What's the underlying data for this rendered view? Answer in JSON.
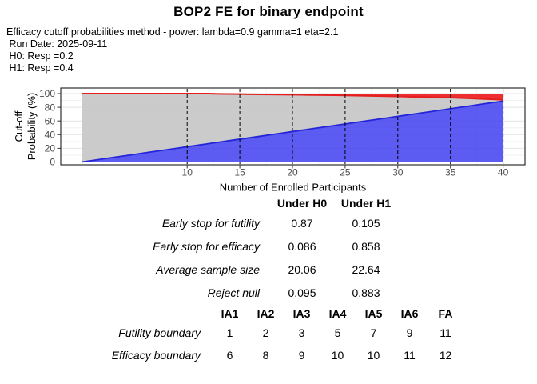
{
  "header": {
    "title": "BOP2 FE for binary endpoint",
    "subtitle": "Efficacy cutoff probabilities method - power: lambda=0.9 gamma=1 eta=2.1",
    "run_date": " Run Date: 2025-09-11",
    "h0": " H0: Resp =0.2",
    "h1": " H1: Resp =0.4"
  },
  "chart_data": {
    "type": "area",
    "title": "",
    "xlabel": "Number of Enrolled Participants",
    "ylabel_lines": [
      "Cut-off",
      "Probability (%)"
    ],
    "xlim": [
      -1,
      42
    ],
    "ylim": [
      -5,
      105
    ],
    "x_ticks": [
      10,
      15,
      20,
      25,
      30,
      35,
      40
    ],
    "y_ticks": [
      0,
      20,
      40,
      60,
      80,
      100
    ],
    "interim_analysis_x": [
      10,
      15,
      20,
      25,
      30,
      35,
      40
    ],
    "grid": true,
    "x": [
      0,
      1,
      2,
      3,
      4,
      5,
      6,
      7,
      8,
      9,
      10,
      11,
      12,
      13,
      14,
      15,
      16,
      17,
      18,
      19,
      20,
      21,
      22,
      23,
      24,
      25,
      26,
      27,
      28,
      29,
      30,
      31,
      32,
      33,
      34,
      35,
      36,
      37,
      38,
      39,
      40
    ],
    "series": [
      {
        "name": "futility-cutoff-probability",
        "region": "stop-for-futility",
        "fill": "#4040f0",
        "line": "#2525d8",
        "values": [
          0,
          2.2,
          4.5,
          6.7,
          8.9,
          11.1,
          13.4,
          15.6,
          17.8,
          20.0,
          22.3,
          24.5,
          26.7,
          28.9,
          31.2,
          33.4,
          35.6,
          37.8,
          40.1,
          42.3,
          44.5,
          46.7,
          49.0,
          51.2,
          53.4,
          55.6,
          57.9,
          60.1,
          62.3,
          64.5,
          66.8,
          69.0,
          71.2,
          73.4,
          75.7,
          77.9,
          80.1,
          82.3,
          84.6,
          86.8,
          89.0
        ]
      },
      {
        "name": "efficacy-cutoff-probability",
        "region": "stop-for-efficacy",
        "fill": "#ee2424",
        "line": "#e51f1f",
        "values": [
          100,
          100,
          100,
          100,
          100,
          100,
          100,
          100,
          100,
          100,
          100,
          100,
          100,
          99.6,
          99.4,
          99.2,
          99.0,
          98.9,
          98.7,
          98.6,
          98.4,
          98.2,
          98.0,
          97.8,
          97.6,
          97.4,
          97.1,
          96.8,
          96.5,
          96.2,
          95.9,
          95.5,
          95.2,
          94.9,
          94.5,
          94.2,
          93.6,
          93.0,
          92.3,
          91.6,
          91.0
        ]
      }
    ],
    "continue_region_fill": "#c8c8c8",
    "colors": {
      "panel_border": "#2f2f2f",
      "grid_major": "#e4e4e4",
      "grid_minor": "#f2f2f2",
      "tick_text": "#4d4d4d",
      "axis_title": "#000000",
      "interim_line": "#000000"
    }
  },
  "oc_table": {
    "col_headers": [
      "Under H0",
      "Under H1"
    ],
    "rows": [
      {
        "label": "Early stop for futility",
        "h0": "0.87",
        "h1": "0.105"
      },
      {
        "label": "Early stop for efficacy",
        "h0": "0.086",
        "h1": "0.858"
      },
      {
        "label": "Average sample size",
        "h0": "20.06",
        "h1": "22.64"
      },
      {
        "label": "Reject null",
        "h0": "0.095",
        "h1": "0.883"
      }
    ]
  },
  "boundary_table": {
    "col_headers": [
      "IA1",
      "IA2",
      "IA3",
      "IA4",
      "IA5",
      "IA6",
      "FA"
    ],
    "rows": [
      {
        "label": "Futility boundary",
        "values": [
          "1",
          "2",
          "3",
          "5",
          "7",
          "9",
          "11"
        ]
      },
      {
        "label": "Efficacy boundary",
        "values": [
          "6",
          "8",
          "9",
          "10",
          "10",
          "11",
          "12"
        ]
      }
    ]
  }
}
